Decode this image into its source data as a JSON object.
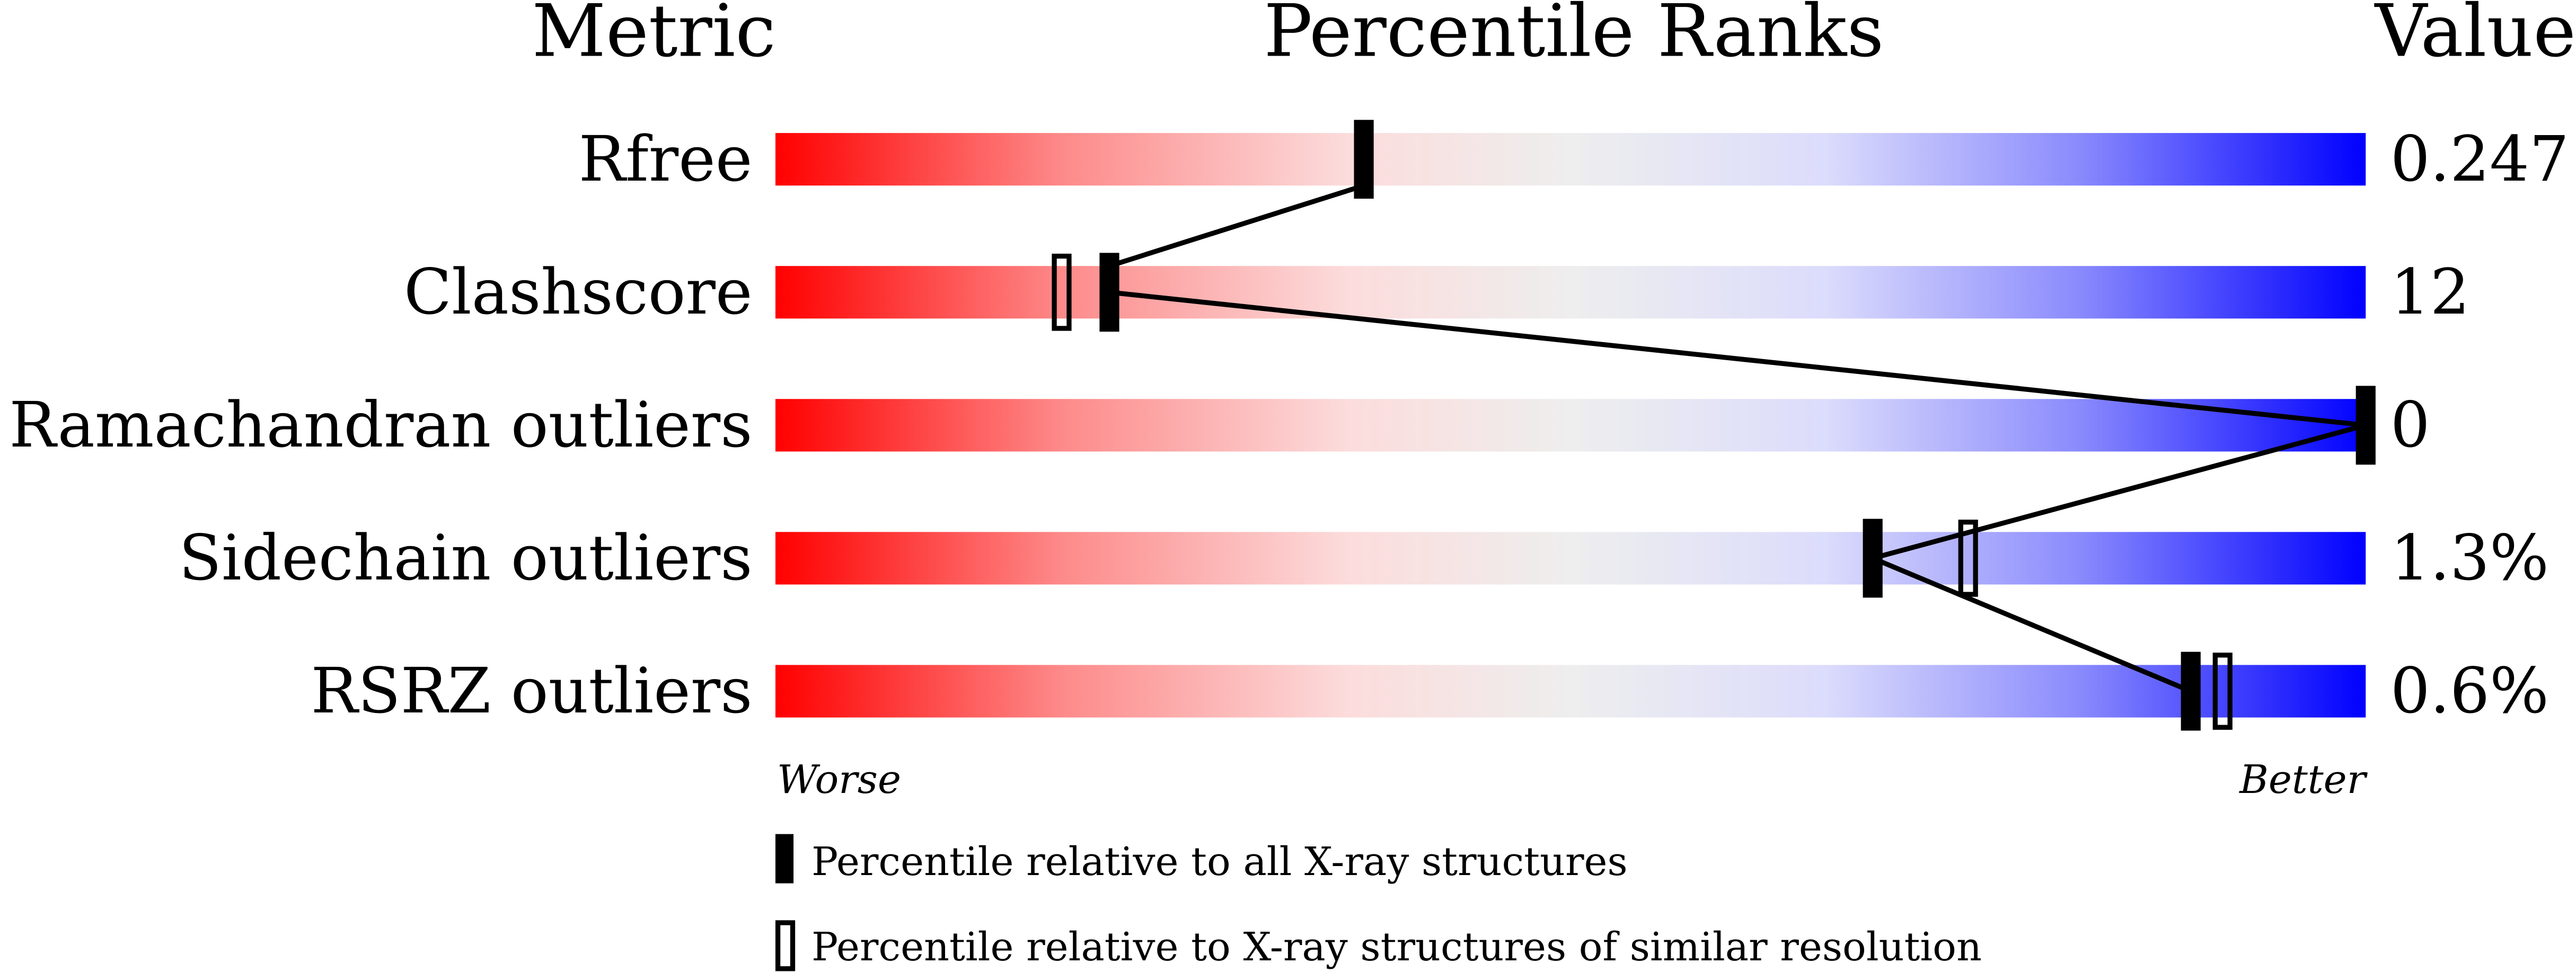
{
  "chart_data": {
    "type": "percentile-bar",
    "headers": {
      "metric": "Metric",
      "ranks": "Percentile Ranks",
      "value": "Value"
    },
    "xlim": [
      0,
      100
    ],
    "rows": [
      {
        "metric": "Rfree",
        "value": "0.247",
        "percentile_all": 37,
        "percentile_similar": null
      },
      {
        "metric": "Clashscore",
        "value": "12",
        "percentile_all": 21,
        "percentile_similar": 18
      },
      {
        "metric": "Ramachandran outliers",
        "value": "0",
        "percentile_all": 100,
        "percentile_similar": null
      },
      {
        "metric": "Sidechain outliers",
        "value": "1.3%",
        "percentile_all": 69,
        "percentile_similar": 75
      },
      {
        "metric": "RSRZ outliers",
        "value": "0.6%",
        "percentile_all": 89,
        "percentile_similar": 91
      }
    ],
    "axis_labels": {
      "left": "Worse",
      "right": "Better"
    },
    "legend": [
      {
        "marker": "filled",
        "label": "Percentile relative to all X-ray structures"
      },
      {
        "marker": "open",
        "label": "Percentile relative to X-ray structures of similar resolution"
      }
    ],
    "colors": {
      "worse": "#ff0000",
      "mid": "#eeeeee",
      "better": "#0000ff"
    }
  }
}
